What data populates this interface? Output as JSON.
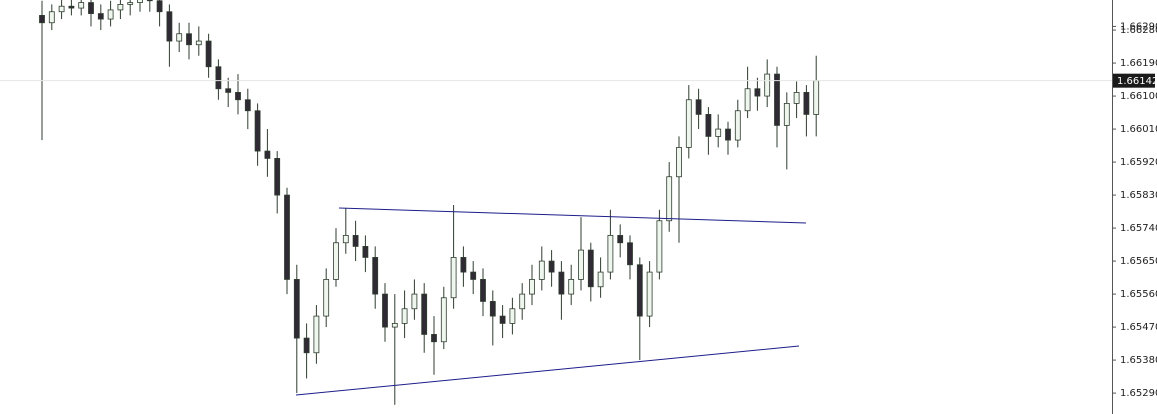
{
  "chart_data": {
    "type": "candlestick",
    "ylim": [
      1.65233,
      1.66362
    ],
    "yticks": [
      {
        "value": 1.6629,
        "label": "1.66290"
      },
      {
        "value": 1.6628,
        "label": "1.66280"
      },
      {
        "value": 1.6619,
        "label": "1.66190"
      },
      {
        "value": 1.661,
        "label": "1.66100"
      },
      {
        "value": 1.6601,
        "label": "1.66010"
      },
      {
        "value": 1.6592,
        "label": "1.65920"
      },
      {
        "value": 1.6583,
        "label": "1.65830"
      },
      {
        "value": 1.6574,
        "label": "1.65740"
      },
      {
        "value": 1.6565,
        "label": "1.65650"
      },
      {
        "value": 1.6556,
        "label": "1.65560"
      },
      {
        "value": 1.6547,
        "label": "1.65470"
      },
      {
        "value": 1.6538,
        "label": "1.65380"
      },
      {
        "value": 1.6529,
        "label": "1.65290"
      }
    ],
    "up_color": "#eef6ee",
    "down_color": "#2f2a33",
    "outline_color": "#2f3d2f",
    "current_color": "#1a1a1a",
    "open": [
      1.6632,
      1.663,
      1.6633,
      1.66345,
      1.6634,
      1.66355,
      1.66325,
      1.6631,
      1.66335,
      1.6635,
      1.66355,
      1.6637,
      1.6636,
      1.6633,
      1.6625,
      1.6627,
      1.6624,
      1.6625,
      1.6618,
      1.6612,
      1.6611,
      1.6609,
      1.6606,
      1.6595,
      1.6593,
      1.6583,
      1.656,
      1.6544,
      1.654,
      1.655,
      1.656,
      1.657,
      1.6572,
      1.6569,
      1.6566,
      1.6556,
      1.6547,
      1.6548,
      1.6552,
      1.6556,
      1.6545,
      1.6543,
      1.6555,
      1.6566,
      1.6562,
      1.656,
      1.6554,
      1.655,
      1.6548,
      1.6552,
      1.6556,
      1.656,
      1.6565,
      1.6562,
      1.6556,
      1.656,
      1.6568,
      1.6558,
      1.6562,
      1.6572,
      1.657,
      1.6564,
      1.655,
      1.6562,
      1.6576,
      1.6588,
      1.6596,
      1.6609,
      1.6605,
      1.6599,
      1.6601,
      1.6598,
      1.6606,
      1.6612,
      1.661,
      1.6616,
      1.6602,
      1.6608,
      1.6611,
      1.6605
    ],
    "high": [
      1.6636,
      1.6635,
      1.6637,
      1.6637,
      1.6638,
      1.6637,
      1.6635,
      1.6636,
      1.6637,
      1.6638,
      1.664,
      1.664,
      1.6638,
      1.6635,
      1.663,
      1.663,
      1.6629,
      1.6627,
      1.662,
      1.6615,
      1.6616,
      1.6612,
      1.6608,
      1.6601,
      1.6595,
      1.6585,
      1.6564,
      1.6548,
      1.6553,
      1.6563,
      1.6574,
      1.65795,
      1.6576,
      1.6572,
      1.6569,
      1.6559,
      1.6556,
      1.6557,
      1.656,
      1.6559,
      1.655,
      1.6558,
      1.65803,
      1.6569,
      1.6565,
      1.6563,
      1.6557,
      1.6553,
      1.6555,
      1.6559,
      1.6564,
      1.6569,
      1.6568,
      1.6565,
      1.6564,
      1.6577,
      1.657,
      1.6566,
      1.6579,
      1.6575,
      1.6572,
      1.6566,
      1.6565,
      1.6579,
      1.6592,
      1.6599,
      1.6613,
      1.6612,
      1.6607,
      1.6605,
      1.6603,
      1.6609,
      1.6618,
      1.6615,
      1.662,
      1.6618,
      1.6611,
      1.6614,
      1.6613,
      1.6621
    ],
    "low": [
      1.6598,
      1.6628,
      1.6631,
      1.6632,
      1.6632,
      1.6629,
      1.6628,
      1.6629,
      1.6631,
      1.6632,
      1.6633,
      1.6633,
      1.6629,
      1.6618,
      1.6622,
      1.662,
      1.6621,
      1.6615,
      1.6609,
      1.6607,
      1.6605,
      1.6601,
      1.6591,
      1.6588,
      1.6578,
      1.6556,
      1.6529,
      1.6533,
      1.6537,
      1.6547,
      1.6558,
      1.6567,
      1.6565,
      1.6562,
      1.6552,
      1.6543,
      1.65258,
      1.6544,
      1.6549,
      1.654,
      1.6534,
      1.6541,
      1.6552,
      1.6558,
      1.6556,
      1.655,
      1.6542,
      1.6544,
      1.6545,
      1.6549,
      1.6553,
      1.6557,
      1.6558,
      1.6549,
      1.6553,
      1.6557,
      1.6554,
      1.6555,
      1.656,
      1.6566,
      1.656,
      1.6538,
      1.6547,
      1.656,
      1.6573,
      1.657,
      1.6593,
      1.6601,
      1.6594,
      1.6596,
      1.6594,
      1.6596,
      1.6604,
      1.6606,
      1.6607,
      1.6596,
      1.659,
      1.6604,
      1.6599,
      1.6599
    ],
    "close": [
      1.663,
      1.6633,
      1.66345,
      1.6634,
      1.66355,
      1.66325,
      1.6631,
      1.66335,
      1.6635,
      1.66355,
      1.6637,
      1.6636,
      1.6633,
      1.6625,
      1.6627,
      1.6624,
      1.6625,
      1.6618,
      1.6612,
      1.6611,
      1.6609,
      1.6606,
      1.6595,
      1.6593,
      1.6583,
      1.656,
      1.6544,
      1.654,
      1.655,
      1.656,
      1.657,
      1.6572,
      1.6569,
      1.6566,
      1.6556,
      1.6547,
      1.6548,
      1.6552,
      1.6556,
      1.6545,
      1.6543,
      1.6555,
      1.6566,
      1.6562,
      1.656,
      1.6554,
      1.655,
      1.6548,
      1.6552,
      1.6556,
      1.656,
      1.6565,
      1.6562,
      1.6556,
      1.656,
      1.6568,
      1.6558,
      1.6562,
      1.6572,
      1.657,
      1.6564,
      1.655,
      1.6562,
      1.6576,
      1.6588,
      1.6596,
      1.6609,
      1.6605,
      1.6599,
      1.6601,
      1.6598,
      1.6606,
      1.6612,
      1.661,
      1.6616,
      1.6602,
      1.6608,
      1.6611,
      1.6605,
      1.66142
    ]
  }
}
